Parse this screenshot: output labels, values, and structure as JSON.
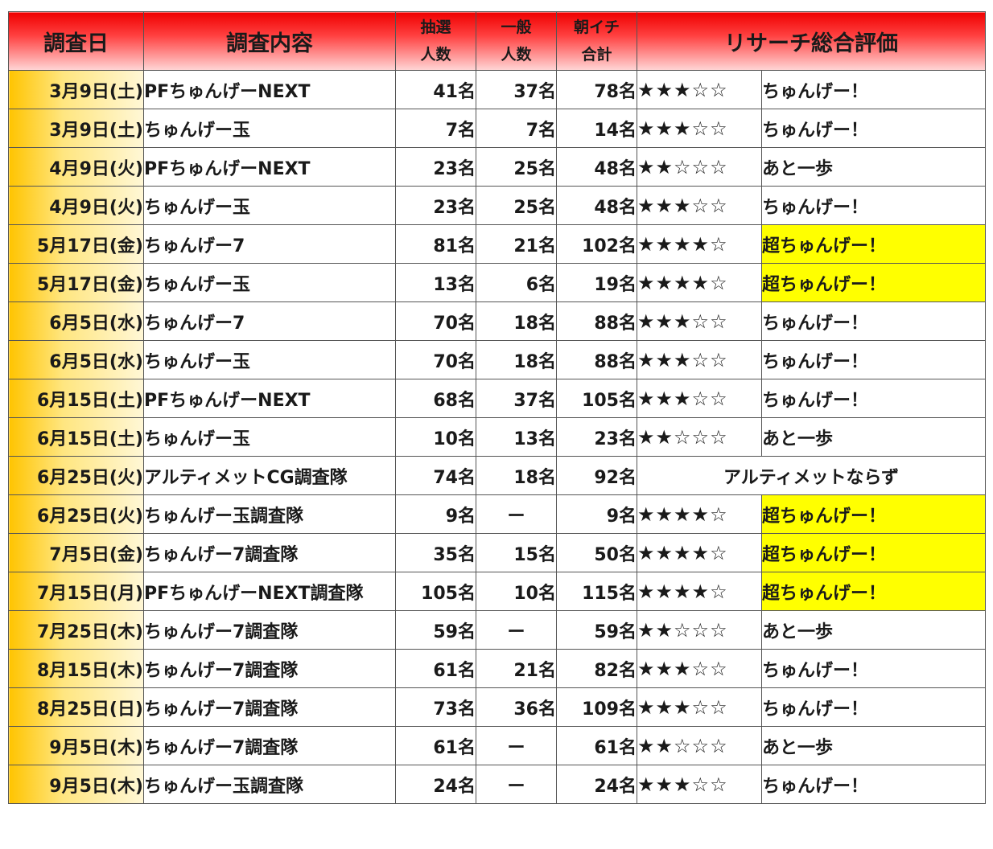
{
  "headers": {
    "date": "調査日",
    "content": "調査内容",
    "lottery_line1": "抽選",
    "lottery_line2": "人数",
    "general_line1": "一般",
    "general_line2": "人数",
    "morning_line1": "朝イチ",
    "morning_line2": "合計",
    "evaluation": "リサーチ総合評価"
  },
  "colors": {
    "header_top": "#f00000",
    "date_fill": "#ffc400",
    "highlight": "#ffff00"
  },
  "rows": [
    {
      "date": "3月9日(土)",
      "content": "PFちゅんげーNEXT",
      "lottery": "41名",
      "general": "37名",
      "total": "78名",
      "stars": "★★★☆☆",
      "rating": "ちゅんげー！",
      "highlight": false
    },
    {
      "date": "3月9日(土)",
      "content": "ちゅんげー玉",
      "lottery": "7名",
      "general": "7名",
      "total": "14名",
      "stars": "★★★☆☆",
      "rating": "ちゅんげー！",
      "highlight": false
    },
    {
      "date": "4月9日(火)",
      "content": "PFちゅんげーNEXT",
      "lottery": "23名",
      "general": "25名",
      "total": "48名",
      "stars": "★★☆☆☆",
      "rating": "あと一歩",
      "highlight": false
    },
    {
      "date": "4月9日(火)",
      "content": "ちゅんげー玉",
      "lottery": "23名",
      "general": "25名",
      "total": "48名",
      "stars": "★★★☆☆",
      "rating": "ちゅんげー！",
      "highlight": false
    },
    {
      "date": "5月17日(金)",
      "content": "ちゅんげー7",
      "lottery": "81名",
      "general": "21名",
      "total": "102名",
      "stars": "★★★★☆",
      "rating": "超ちゅんげー！",
      "highlight": true
    },
    {
      "date": "5月17日(金)",
      "content": "ちゅんげー玉",
      "lottery": "13名",
      "general": "6名",
      "total": "19名",
      "stars": "★★★★☆",
      "rating": "超ちゅんげー！",
      "highlight": true
    },
    {
      "date": "6月5日(水)",
      "content": "ちゅんげー7",
      "lottery": "70名",
      "general": "18名",
      "total": "88名",
      "stars": "★★★☆☆",
      "rating": "ちゅんげー！",
      "highlight": false
    },
    {
      "date": "6月5日(水)",
      "content": "ちゅんげー玉",
      "lottery": "70名",
      "general": "18名",
      "total": "88名",
      "stars": "★★★☆☆",
      "rating": "ちゅんげー！",
      "highlight": false
    },
    {
      "date": "6月15日(土)",
      "content": "PFちゅんげーNEXT",
      "lottery": "68名",
      "general": "37名",
      "total": "105名",
      "stars": "★★★☆☆",
      "rating": "ちゅんげー！",
      "highlight": false
    },
    {
      "date": "6月15日(土)",
      "content": "ちゅんげー玉",
      "lottery": "10名",
      "general": "13名",
      "total": "23名",
      "stars": "★★☆☆☆",
      "rating": "あと一歩",
      "highlight": false
    },
    {
      "date": "6月25日(火)",
      "content": "アルティメットCG調査隊",
      "lottery": "74名",
      "general": "18名",
      "total": "92名",
      "merged": "アルティメットならず"
    },
    {
      "date": "6月25日(火)",
      "content": "ちゅんげー玉調査隊",
      "lottery": "9名",
      "general": "ー",
      "total": "9名",
      "stars": "★★★★☆",
      "rating": "超ちゅんげー！",
      "highlight": true
    },
    {
      "date": "7月5日(金)",
      "content": "ちゅんげー7調査隊",
      "lottery": "35名",
      "general": "15名",
      "total": "50名",
      "stars": "★★★★☆",
      "rating": "超ちゅんげー！",
      "highlight": true
    },
    {
      "date": "7月15日(月)",
      "content": "PFちゅんげーNEXT調査隊",
      "lottery": "105名",
      "general": "10名",
      "total": "115名",
      "stars": "★★★★☆",
      "rating": "超ちゅんげー！",
      "highlight": true
    },
    {
      "date": "7月25日(木)",
      "content": "ちゅんげー7調査隊",
      "lottery": "59名",
      "general": "ー",
      "total": "59名",
      "stars": "★★☆☆☆",
      "rating": "あと一歩",
      "highlight": false
    },
    {
      "date": "8月15日(木)",
      "content": "ちゅんげー7調査隊",
      "lottery": "61名",
      "general": "21名",
      "total": "82名",
      "stars": "★★★☆☆",
      "rating": "ちゅんげー！",
      "highlight": false
    },
    {
      "date": "8月25日(日)",
      "content": "ちゅんげー7調査隊",
      "lottery": "73名",
      "general": "36名",
      "total": "109名",
      "stars": "★★★☆☆",
      "rating": "ちゅんげー！",
      "highlight": false
    },
    {
      "date": "9月5日(木)",
      "content": "ちゅんげー7調査隊",
      "lottery": "61名",
      "general": "ー",
      "total": "61名",
      "stars": "★★☆☆☆",
      "rating": "あと一歩",
      "highlight": false
    },
    {
      "date": "9月5日(木)",
      "content": "ちゅんげー玉調査隊",
      "lottery": "24名",
      "general": "ー",
      "total": "24名",
      "stars": "★★★☆☆",
      "rating": "ちゅんげー！",
      "highlight": false
    }
  ]
}
